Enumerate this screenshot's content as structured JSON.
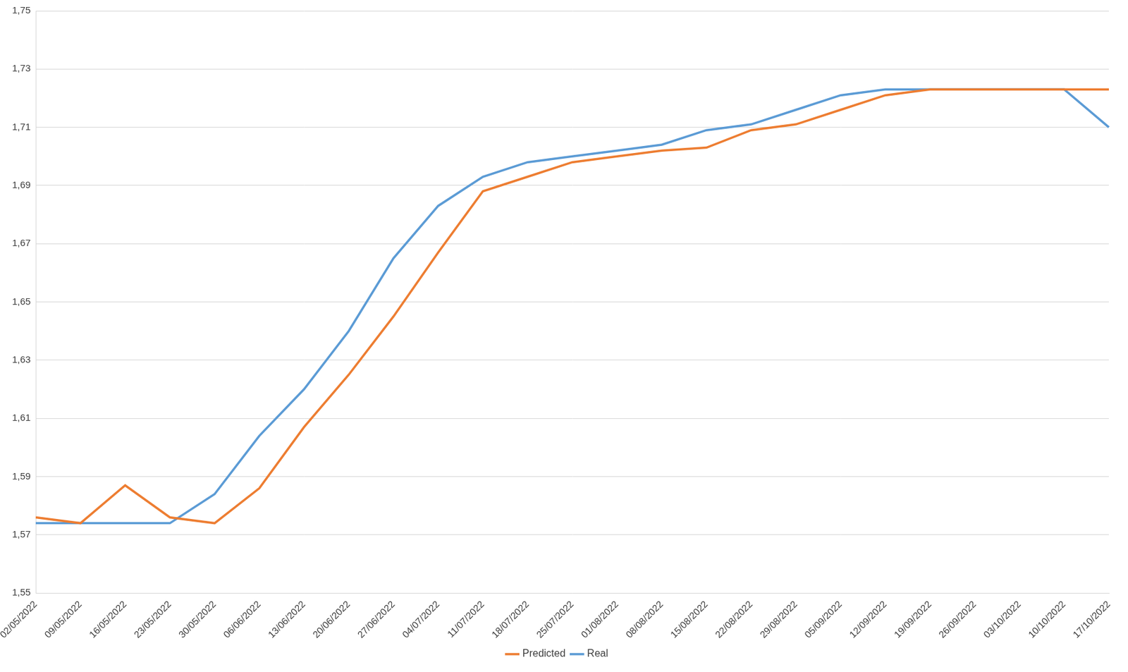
{
  "chart_data": {
    "type": "line",
    "categories": [
      "02/05/2022",
      "09/05/2022",
      "16/05/2022",
      "23/05/2022",
      "30/05/2022",
      "06/06/2022",
      "13/06/2022",
      "20/06/2022",
      "27/06/2022",
      "04/07/2022",
      "11/07/2022",
      "18/07/2022",
      "25/07/2022",
      "01/08/2022",
      "08/08/2022",
      "15/08/2022",
      "22/08/2022",
      "29/08/2022",
      "05/09/2022",
      "12/09/2022",
      "19/09/2022",
      "26/09/2022",
      "03/10/2022",
      "10/10/2022",
      "17/10/2022"
    ],
    "series": [
      {
        "name": "Predicted",
        "color": "#ed7d31",
        "marker": "none",
        "values": [
          1.576,
          1.574,
          1.587,
          1.576,
          1.574,
          1.586,
          1.607,
          1.625,
          1.645,
          1.667,
          1.688,
          1.693,
          1.698,
          1.7,
          1.702,
          1.703,
          1.709,
          1.711,
          1.716,
          1.721,
          1.723,
          1.723,
          1.723,
          1.723,
          1.723
        ]
      },
      {
        "name": "Real",
        "color": "#5b9bd5",
        "marker": "none",
        "values": [
          1.574,
          1.574,
          1.574,
          1.574,
          1.584,
          1.604,
          1.62,
          1.64,
          1.665,
          1.683,
          1.693,
          1.698,
          1.7,
          1.702,
          1.704,
          1.709,
          1.711,
          1.716,
          1.721,
          1.723,
          1.723,
          1.723,
          1.723,
          1.723,
          1.71
        ]
      }
    ],
    "ylim": [
      1.55,
      1.75
    ],
    "yticks": [
      {
        "value": 1.55,
        "label": "1,55"
      },
      {
        "value": 1.57,
        "label": "1,57"
      },
      {
        "value": 1.59,
        "label": "1,59"
      },
      {
        "value": 1.61,
        "label": "1,61"
      },
      {
        "value": 1.63,
        "label": "1,63"
      },
      {
        "value": 1.65,
        "label": "1,65"
      },
      {
        "value": 1.67,
        "label": "1,67"
      },
      {
        "value": 1.69,
        "label": "1,69"
      },
      {
        "value": 1.71,
        "label": "1,71"
      },
      {
        "value": 1.73,
        "label": "1,73"
      },
      {
        "value": 1.75,
        "label": "1,75"
      }
    ],
    "grid": true,
    "legend": "bottom"
  }
}
